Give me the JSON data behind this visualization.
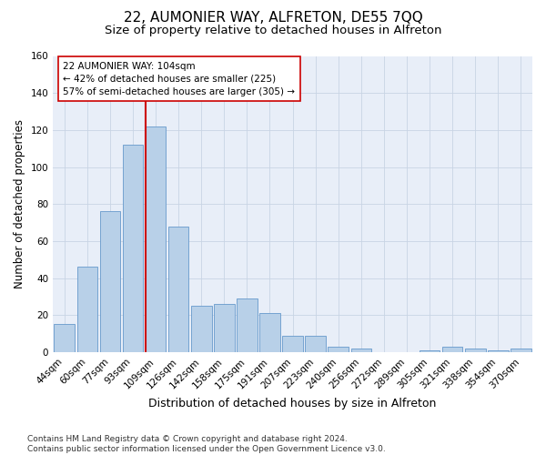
{
  "title": "22, AUMONIER WAY, ALFRETON, DE55 7QQ",
  "subtitle": "Size of property relative to detached houses in Alfreton",
  "xlabel": "Distribution of detached houses by size in Alfreton",
  "ylabel": "Number of detached properties",
  "bar_labels": [
    "44sqm",
    "60sqm",
    "77sqm",
    "93sqm",
    "109sqm",
    "126sqm",
    "142sqm",
    "158sqm",
    "175sqm",
    "191sqm",
    "207sqm",
    "223sqm",
    "240sqm",
    "256sqm",
    "272sqm",
    "289sqm",
    "305sqm",
    "321sqm",
    "338sqm",
    "354sqm",
    "370sqm"
  ],
  "bar_heights": [
    15,
    46,
    76,
    112,
    122,
    68,
    25,
    26,
    29,
    21,
    9,
    9,
    3,
    2,
    0,
    0,
    1,
    3,
    2,
    1,
    2
  ],
  "bar_color": "#b8d0e8",
  "bar_edgecolor": "#6699cc",
  "grid_color": "#c8d4e4",
  "background_color": "#e8eef8",
  "vline_color": "#cc0000",
  "annotation_text": "22 AUMONIER WAY: 104sqm\n← 42% of detached houses are smaller (225)\n57% of semi-detached houses are larger (305) →",
  "annotation_box_edgecolor": "#cc0000",
  "ylim": [
    0,
    160
  ],
  "yticks": [
    0,
    20,
    40,
    60,
    80,
    100,
    120,
    140,
    160
  ],
  "footnote": "Contains HM Land Registry data © Crown copyright and database right 2024.\nContains public sector information licensed under the Open Government Licence v3.0.",
  "title_fontsize": 11,
  "subtitle_fontsize": 9.5,
  "xlabel_fontsize": 9,
  "ylabel_fontsize": 8.5,
  "tick_fontsize": 7.5,
  "annotation_fontsize": 7.5,
  "footnote_fontsize": 6.5,
  "vline_bar_index": 4
}
